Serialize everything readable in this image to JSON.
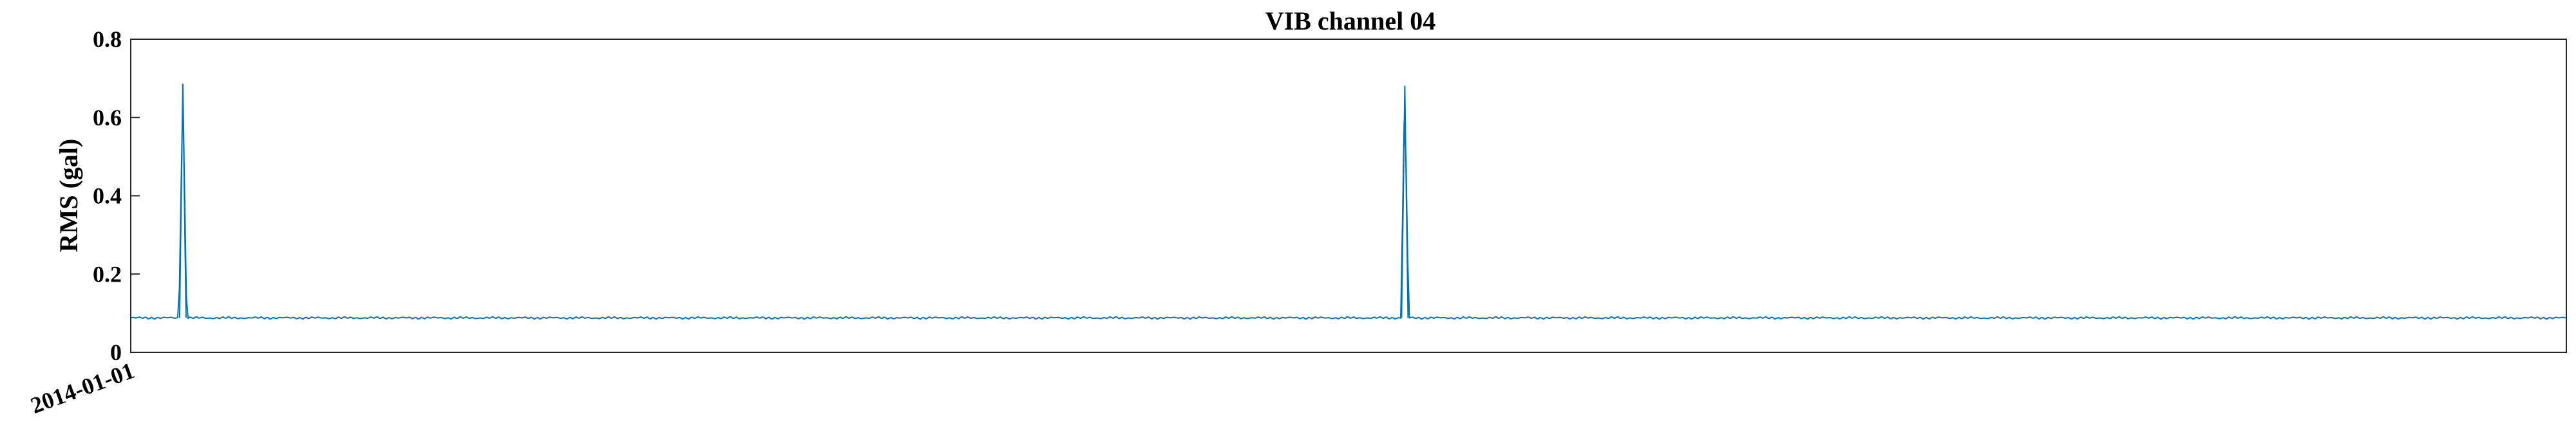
{
  "chart_data": {
    "type": "line",
    "title": "VIB channel 04",
    "ylabel": "RMS (gal)",
    "xlabel": "",
    "ylim": [
      0,
      0.8
    ],
    "yticks": [
      {
        "value": 0,
        "label": "0"
      },
      {
        "value": 0.2,
        "label": "0.2"
      },
      {
        "value": 0.4,
        "label": "0.4"
      },
      {
        "value": 0.6,
        "label": "0.6"
      },
      {
        "value": 0.8,
        "label": "0.8"
      }
    ],
    "xticks": [
      {
        "label": "2014-01-01"
      }
    ],
    "grid": false,
    "line_color": "#0072BD",
    "series": [
      {
        "baseline": 0.088,
        "spikes": [
          {
            "position": 0.0214,
            "value": 0.685
          },
          {
            "position": 0.5231,
            "value": 0.68
          }
        ]
      }
    ]
  }
}
